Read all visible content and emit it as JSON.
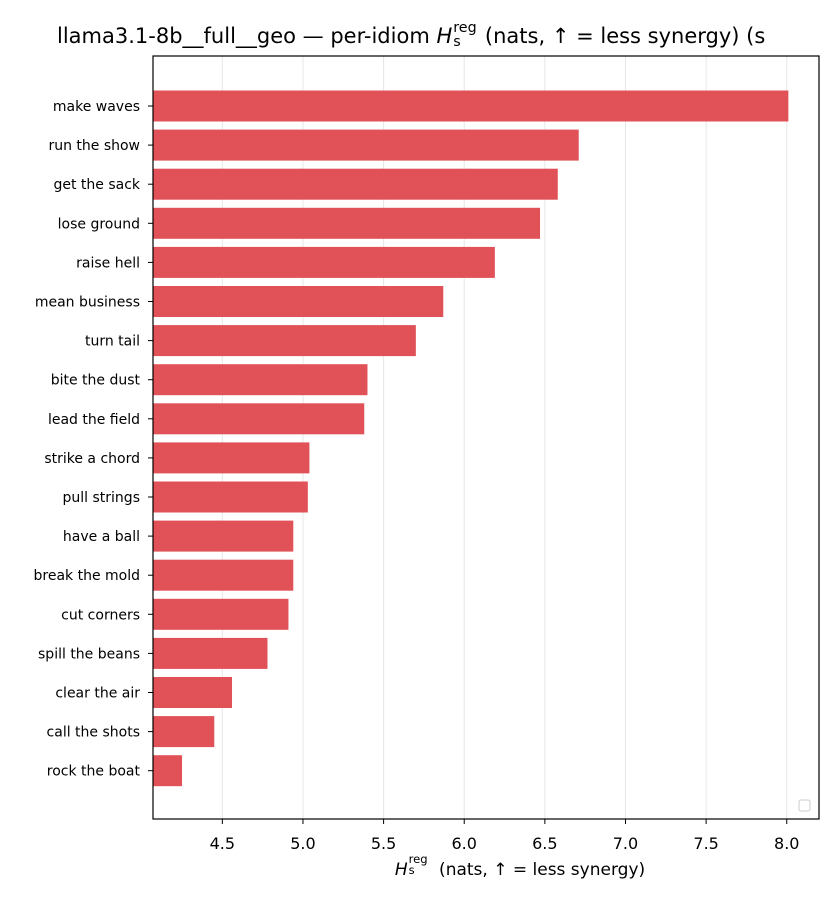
{
  "chart_data": {
    "type": "bar",
    "orientation": "horizontal",
    "title": {
      "prefix": "llama3.1-8b__full__geo — per-idiom ",
      "symbol": "H",
      "superscript": "reg",
      "subscript": "s",
      "suffix": " (nats, ↑ = less synergy) (s"
    },
    "xlabel": {
      "symbol": "H",
      "superscript": "reg",
      "subscript": "s",
      "suffix": " (nats, ↑ = less synergy)"
    },
    "categories": [
      "make waves",
      "run the show",
      "get the sack",
      "lose ground",
      "raise hell",
      "mean business",
      "turn tail",
      "bite the dust",
      "lead the field",
      "strike a chord",
      "pull strings",
      "have a ball",
      "break the mold",
      "cut corners",
      "spill the beans",
      "clear the air",
      "call the shots",
      "rock the boat"
    ],
    "values": [
      8.01,
      6.71,
      6.58,
      6.47,
      6.19,
      5.87,
      5.7,
      5.4,
      5.38,
      5.04,
      5.03,
      4.94,
      4.94,
      4.91,
      4.78,
      4.56,
      4.45,
      4.25
    ],
    "xlim": [
      4.07,
      8.2
    ],
    "xticks": [
      "4.5",
      "5.0",
      "5.5",
      "6.0",
      "6.5",
      "7.0",
      "7.5",
      "8.0"
    ],
    "grid": "x",
    "bar_color": "#e05257",
    "legend": "lower-right (empty)"
  }
}
